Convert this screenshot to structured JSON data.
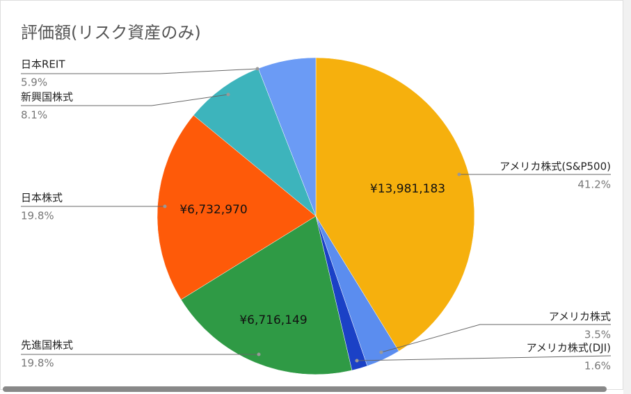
{
  "chart_data": {
    "type": "pie",
    "title": "評価額(リスク資産のみ)",
    "categories": [
      "アメリカ株式(S&P500)",
      "アメリカ株式",
      "アメリカ株式(DJI)",
      "先進国株式",
      "日本株式",
      "新興国株式",
      "日本REIT"
    ],
    "values": [
      41.2,
      3.5,
      1.6,
      19.8,
      19.8,
      8.1,
      5.9
    ],
    "value_labels": [
      "41.2%",
      "3.5%",
      "1.6%",
      "19.8%",
      "19.8%",
      "8.1%",
      "5.9%"
    ],
    "amount_labels": [
      "¥13,981,183",
      null,
      null,
      "¥6,716,149",
      "¥6,732,970",
      null,
      null
    ],
    "colors": [
      "#f6b00d",
      "#5b8def",
      "#1b41c6",
      "#2f9a45",
      "#fe5a09",
      "#3db4bc",
      "#6b9bf5"
    ]
  }
}
